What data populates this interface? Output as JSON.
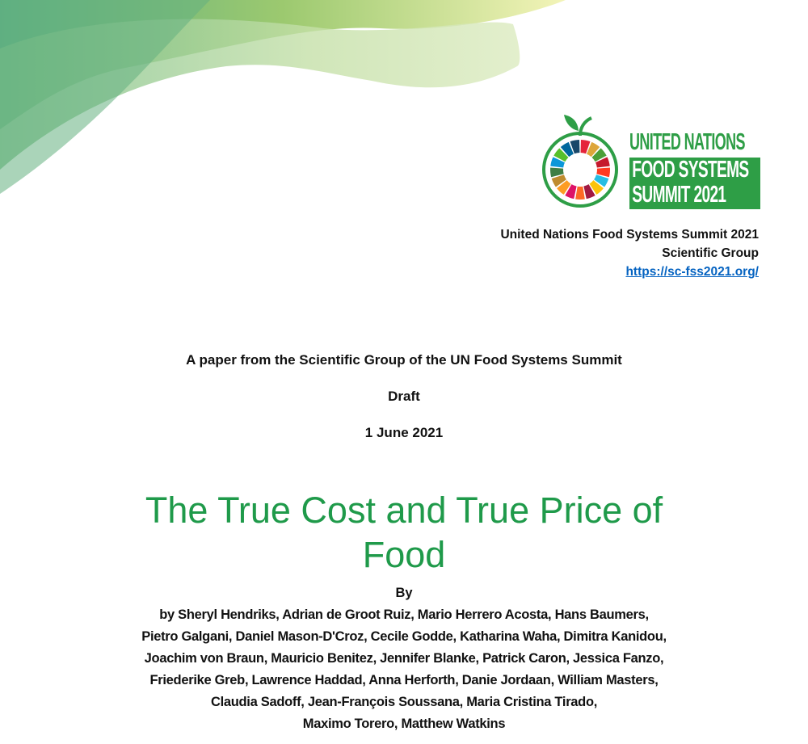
{
  "logo": {
    "line1": "UNITED NATIONS",
    "line2": "FOOD SYSTEMS",
    "line3": "SUMMIT 2021",
    "brand_color": "#2e9e46"
  },
  "org": {
    "name": "United Nations Food Systems Summit 2021",
    "group": "Scientific Group",
    "url": "https://sc-fss2021.org/"
  },
  "subtitle": "A paper from the Scientific Group of the UN Food Systems Summit",
  "status": "Draft",
  "date": "1 June 2021",
  "title": {
    "line1": "The True Cost and True Price of",
    "line2": "Food",
    "color": "#1f9a4a"
  },
  "by_label": "By",
  "authors": [
    "by Sheryl Hendriks, Adrian de Groot Ruiz, Mario Herrero Acosta, Hans Baumers,",
    "Pietro Galgani, Daniel Mason-D'Croz, Cecile Godde, Katharina Waha, Dimitra Kanidou,",
    "Joachim von Braun, Mauricio Benitez, Jennifer Blanke, Patrick Caron, Jessica Fanzo,",
    "Friederike Greb, Lawrence Haddad, Anna Herforth, Danie Jordaan, William  Masters,",
    "Claudia Sadoff, Jean-François Soussana, Maria Cristina Tirado,",
    "Maximo Torero, Matthew Watkins"
  ]
}
